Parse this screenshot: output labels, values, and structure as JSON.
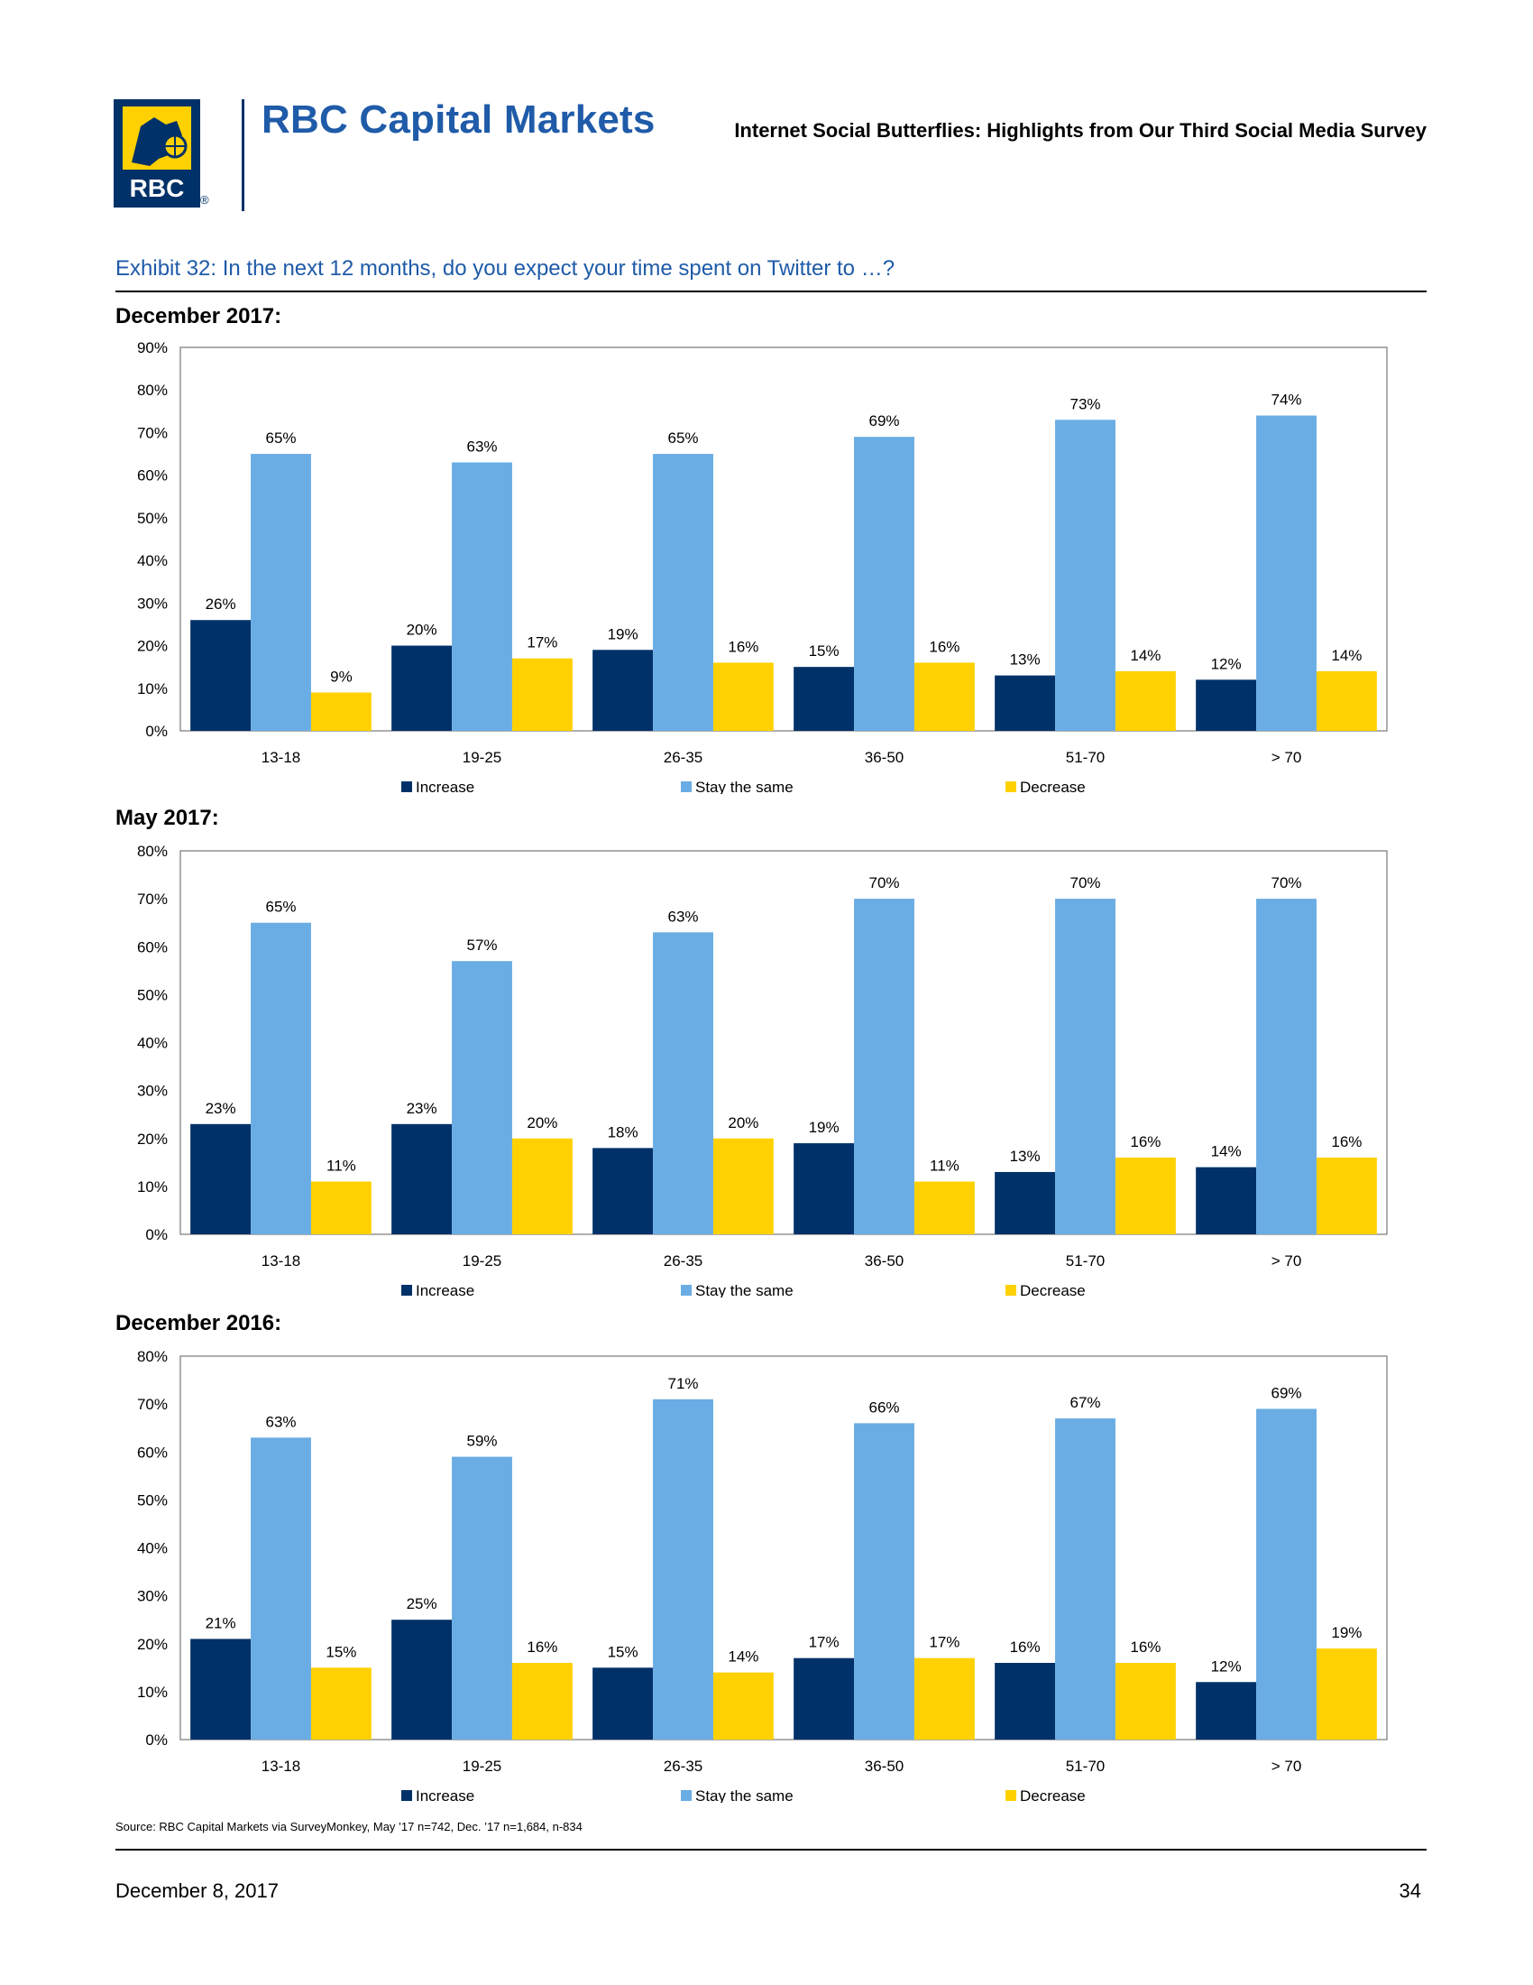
{
  "header": {
    "logo_text": "RBC",
    "brand": "RBC Capital Markets",
    "document_title": "Internet Social Butterflies: Highlights from Our Third Social Media Survey"
  },
  "exhibit_title": "Exhibit 32: In the next 12 months, do you expect your time spent on Twitter to …?",
  "colors": {
    "increase": "#003168",
    "stay": "#6aade4",
    "decrease": "#ffd100",
    "brand_blue": "#1f5ba8"
  },
  "chart_data": [
    {
      "type": "bar",
      "title": "December 2017:",
      "categories": [
        "13-18",
        "19-25",
        "26-35",
        "36-50",
        "51-70",
        "> 70"
      ],
      "series": [
        {
          "name": "Increase",
          "values": [
            26,
            20,
            19,
            15,
            13,
            12
          ]
        },
        {
          "name": "Stay the same",
          "values": [
            65,
            63,
            65,
            69,
            73,
            74
          ]
        },
        {
          "name": "Decrease",
          "values": [
            9,
            17,
            16,
            16,
            14,
            14
          ]
        }
      ],
      "ylim": [
        0,
        90
      ],
      "yticks": [
        "0%",
        "10%",
        "20%",
        "30%",
        "40%",
        "50%",
        "60%",
        "70%",
        "80%",
        "90%"
      ],
      "data_labels": [
        [
          "26%",
          "20%",
          "19%",
          "15%",
          "13%",
          "12%"
        ],
        [
          "65%",
          "63%",
          "65%",
          "69%",
          "73%",
          "74%"
        ],
        [
          "9%",
          "17%",
          "16%",
          "16%",
          "14%",
          "14%"
        ]
      ],
      "legend": "bottom"
    },
    {
      "type": "bar",
      "title": "May 2017:",
      "categories": [
        "13-18",
        "19-25",
        "26-35",
        "36-50",
        "51-70",
        "> 70"
      ],
      "series": [
        {
          "name": "Increase",
          "values": [
            23,
            23,
            18,
            19,
            13,
            14
          ]
        },
        {
          "name": "Stay the same",
          "values": [
            65,
            57,
            63,
            70,
            70,
            70
          ]
        },
        {
          "name": "Decrease",
          "values": [
            11,
            20,
            20,
            11,
            16,
            16
          ]
        }
      ],
      "ylim": [
        0,
        80
      ],
      "yticks": [
        "0%",
        "10%",
        "20%",
        "30%",
        "40%",
        "50%",
        "60%",
        "70%",
        "80%"
      ],
      "data_labels": [
        [
          "23%",
          "23%",
          "18%",
          "19%",
          "13%",
          "14%"
        ],
        [
          "65%",
          "57%",
          "63%",
          "70%",
          "70%",
          "70%"
        ],
        [
          "11%",
          "20%",
          "20%",
          "11%",
          "16%",
          "16%"
        ]
      ],
      "legend": "bottom"
    },
    {
      "type": "bar",
      "title": "December 2016:",
      "categories": [
        "13-18",
        "19-25",
        "26-35",
        "36-50",
        "51-70",
        "> 70"
      ],
      "series": [
        {
          "name": "Increase",
          "values": [
            21,
            25,
            15,
            17,
            16,
            12
          ]
        },
        {
          "name": "Stay the same",
          "values": [
            63,
            59,
            71,
            66,
            67,
            69
          ]
        },
        {
          "name": "Decrease",
          "values": [
            15,
            16,
            14,
            17,
            16,
            19
          ]
        }
      ],
      "ylim": [
        0,
        80
      ],
      "yticks": [
        "0%",
        "10%",
        "20%",
        "30%",
        "40%",
        "50%",
        "60%",
        "70%",
        "80%"
      ],
      "data_labels": [
        [
          "21%",
          "25%",
          "15%",
          "17%",
          "16%",
          "12%"
        ],
        [
          "63%",
          "59%",
          "71%",
          "66%",
          "67%",
          "69%"
        ],
        [
          "15%",
          "16%",
          "14%",
          "17%",
          "16%",
          "19%"
        ]
      ],
      "legend": "bottom"
    }
  ],
  "source": "Source: RBC Capital Markets via SurveyMonkey, May ’17 n=742, Dec. ’17 n=1,684, n-834",
  "footer": {
    "date": "December 8, 2017",
    "page": "34"
  }
}
